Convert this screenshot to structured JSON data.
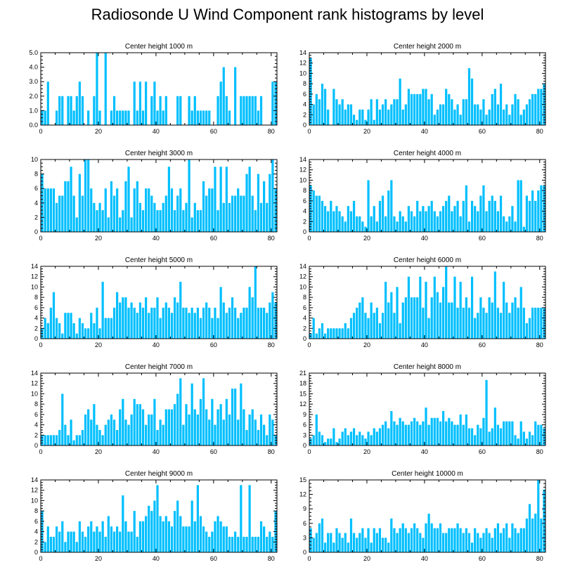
{
  "title": "Radiosonde U Wind Component rank histograms by level",
  "chart_data": [
    {
      "type": "bar",
      "title": "Center height 1000 m",
      "ylim": [
        0,
        5
      ],
      "yticks": [
        0,
        1,
        2,
        3,
        4,
        5
      ],
      "ytick_labels": [
        "0.0",
        "1.0",
        "2.0",
        "3.0",
        "4.0",
        "5.0"
      ],
      "xlim": [
        0,
        82
      ],
      "xticks": [
        0,
        20,
        40,
        60,
        80
      ],
      "xtick_labels": [
        "0",
        "20",
        "40",
        "60",
        "80"
      ],
      "values": [
        1,
        1,
        3,
        0,
        0,
        1,
        2,
        2,
        0,
        2,
        2,
        1,
        2,
        3,
        2,
        0,
        1,
        0,
        2,
        5,
        1,
        0,
        5,
        0,
        1,
        2,
        1,
        1,
        1,
        1,
        1,
        0,
        3,
        1,
        3,
        1,
        3,
        0,
        2,
        3,
        1,
        2,
        1,
        2,
        0,
        0,
        0,
        2,
        2,
        0,
        0,
        2,
        1,
        2,
        1,
        1,
        1,
        1,
        1,
        0,
        0,
        2,
        3,
        4,
        2,
        1,
        0,
        4,
        0,
        2,
        2,
        2,
        2,
        2,
        2,
        1,
        2,
        0,
        0,
        0,
        3,
        3
      ]
    },
    {
      "type": "bar",
      "title": "Center height 2000 m",
      "ylim": [
        0,
        14
      ],
      "yticks": [
        0,
        2,
        4,
        6,
        8,
        10,
        12,
        14
      ],
      "ytick_labels": [
        "0",
        "2",
        "4",
        "6",
        "8",
        "10",
        "12",
        "14"
      ],
      "xlim": [
        0,
        82
      ],
      "xticks": [
        0,
        20,
        40,
        60,
        80
      ],
      "xtick_labels": [
        "0",
        "20",
        "40",
        "60",
        "80"
      ],
      "values": [
        13,
        4,
        6,
        5,
        8,
        7,
        3,
        0,
        7,
        5,
        4,
        5,
        3,
        4,
        4,
        2,
        1,
        3,
        3,
        1,
        3,
        5,
        1,
        5,
        3,
        4,
        5,
        3,
        4,
        5,
        5,
        9,
        3,
        4,
        7,
        6,
        6,
        6,
        6,
        7,
        7,
        5,
        6,
        2,
        3,
        4,
        4,
        7,
        6,
        5,
        3,
        4,
        2,
        5,
        5,
        11,
        9,
        4,
        4,
        3,
        5,
        2,
        3,
        6,
        7,
        4,
        8,
        3,
        4,
        2,
        4,
        6,
        5,
        2,
        3,
        4,
        5,
        6,
        6,
        7,
        7,
        8
      ]
    },
    {
      "type": "bar",
      "title": "Center height 3000 m",
      "ylim": [
        0,
        10
      ],
      "yticks": [
        0,
        2,
        4,
        6,
        8,
        10
      ],
      "ytick_labels": [
        "0",
        "2",
        "4",
        "6",
        "8",
        "10"
      ],
      "xlim": [
        0,
        82
      ],
      "xticks": [
        0,
        20,
        40,
        60,
        80
      ],
      "xtick_labels": [
        "0",
        "20",
        "40",
        "60",
        "80"
      ],
      "values": [
        8,
        6,
        6,
        6,
        6,
        4,
        5,
        5,
        7,
        7,
        9,
        5,
        2,
        8,
        5,
        10,
        10,
        6,
        4,
        3,
        4,
        3,
        6,
        2,
        7,
        5,
        6,
        2,
        3,
        7,
        9,
        2,
        6,
        7,
        4,
        3,
        6,
        6,
        5,
        4,
        3,
        3,
        4,
        5,
        9,
        6,
        3,
        5,
        6,
        3,
        4,
        10,
        2,
        4,
        3,
        3,
        7,
        5,
        6,
        6,
        9,
        3,
        9,
        4,
        9,
        4,
        5,
        5,
        6,
        5,
        5,
        8,
        9,
        5,
        3,
        8,
        4,
        7,
        4,
        8,
        10,
        6
      ]
    },
    {
      "type": "bar",
      "title": "Center height 4000 m",
      "ylim": [
        0,
        14
      ],
      "yticks": [
        0,
        2,
        4,
        6,
        8,
        10,
        12,
        14
      ],
      "ytick_labels": [
        "0",
        "2",
        "4",
        "6",
        "8",
        "10",
        "12",
        "14"
      ],
      "xlim": [
        0,
        82
      ],
      "xticks": [
        0,
        20,
        40,
        60,
        80
      ],
      "xtick_labels": [
        "0",
        "20",
        "40",
        "60",
        "80"
      ],
      "values": [
        9,
        8,
        7,
        7,
        6,
        5,
        4,
        6,
        4,
        5,
        4,
        3,
        2,
        5,
        4,
        6,
        3,
        3,
        2,
        1,
        10,
        3,
        5,
        2,
        6,
        7,
        3,
        8,
        10,
        3,
        2,
        4,
        3,
        2,
        5,
        4,
        3,
        6,
        4,
        5,
        4,
        5,
        6,
        4,
        3,
        4,
        5,
        6,
        7,
        4,
        5,
        6,
        3,
        6,
        9,
        2,
        6,
        5,
        4,
        7,
        9,
        4,
        6,
        7,
        6,
        4,
        7,
        3,
        2,
        3,
        5,
        2,
        10,
        10,
        1,
        7,
        6,
        8,
        6,
        8,
        9,
        9
      ]
    },
    {
      "type": "bar",
      "title": "Center height 5000 m",
      "ylim": [
        0,
        14
      ],
      "yticks": [
        0,
        2,
        4,
        6,
        8,
        10,
        12,
        14
      ],
      "ytick_labels": [
        "0",
        "2",
        "4",
        "6",
        "8",
        "10",
        "12",
        "14"
      ],
      "xlim": [
        0,
        82
      ],
      "xticks": [
        0,
        20,
        40,
        60,
        80
      ],
      "xtick_labels": [
        "0",
        "20",
        "40",
        "60",
        "80"
      ],
      "values": [
        2,
        4,
        3,
        6,
        9,
        4,
        3,
        1,
        5,
        5,
        5,
        3,
        1,
        4,
        3,
        2,
        2,
        5,
        3,
        6,
        2,
        11,
        4,
        4,
        4,
        6,
        9,
        7,
        8,
        8,
        6,
        7,
        6,
        5,
        7,
        6,
        8,
        5,
        6,
        6,
        8,
        4,
        6,
        7,
        6,
        5,
        8,
        7,
        11,
        6,
        6,
        5,
        6,
        5,
        6,
        4,
        6,
        7,
        6,
        4,
        6,
        4,
        10,
        7,
        5,
        6,
        8,
        6,
        4,
        5,
        6,
        6,
        10,
        8,
        14,
        6,
        6,
        6,
        5,
        7,
        9,
        7
      ]
    },
    {
      "type": "bar",
      "title": "Center height 6000 m",
      "ylim": [
        0,
        14
      ],
      "yticks": [
        0,
        2,
        4,
        6,
        8,
        10,
        12,
        14
      ],
      "ytick_labels": [
        "0",
        "2",
        "4",
        "6",
        "8",
        "10",
        "12",
        "14"
      ],
      "xlim": [
        0,
        82
      ],
      "xticks": [
        0,
        20,
        40,
        60,
        80
      ],
      "xtick_labels": [
        "0",
        "20",
        "40",
        "60",
        "80"
      ],
      "values": [
        1,
        4,
        1,
        2,
        3,
        1,
        2,
        2,
        2,
        2,
        2,
        2,
        3,
        2,
        4,
        5,
        6,
        7,
        8,
        5,
        4,
        7,
        5,
        6,
        3,
        5,
        11,
        7,
        9,
        5,
        10,
        3,
        7,
        8,
        12,
        8,
        8,
        8,
        12,
        6,
        11,
        4,
        8,
        12,
        9,
        7,
        10,
        14,
        7,
        7,
        12,
        6,
        11,
        6,
        8,
        6,
        12,
        4,
        5,
        8,
        6,
        5,
        8,
        7,
        13,
        6,
        5,
        11,
        7,
        5,
        7,
        8,
        6,
        10,
        6,
        3,
        4,
        6,
        6,
        6,
        6,
        6
      ]
    },
    {
      "type": "bar",
      "title": "Center height 7000 m",
      "ylim": [
        0,
        14
      ],
      "yticks": [
        0,
        2,
        4,
        6,
        8,
        10,
        12,
        14
      ],
      "ytick_labels": [
        "0",
        "2",
        "4",
        "6",
        "8",
        "10",
        "12",
        "14"
      ],
      "xlim": [
        0,
        82
      ],
      "xticks": [
        0,
        20,
        40,
        60,
        80
      ],
      "xtick_labels": [
        "0",
        "20",
        "40",
        "60",
        "80"
      ],
      "values": [
        2,
        2,
        2,
        2,
        2,
        2,
        3,
        10,
        4,
        2,
        5,
        1,
        2,
        2,
        3,
        6,
        7,
        5,
        8,
        4,
        3,
        2,
        4,
        5,
        6,
        5,
        3,
        7,
        9,
        5,
        4,
        6,
        9,
        8,
        8,
        7,
        4,
        6,
        6,
        9,
        3,
        5,
        4,
        7,
        7,
        7,
        8,
        10,
        13,
        4,
        8,
        6,
        12,
        7,
        6,
        9,
        13,
        7,
        5,
        9,
        4,
        7,
        8,
        5,
        9,
        6,
        11,
        11,
        5,
        12,
        7,
        3,
        6,
        7,
        5,
        3,
        6,
        4,
        2,
        6,
        5,
        2
      ]
    },
    {
      "type": "bar",
      "title": "Center height 8000 m",
      "ylim": [
        0,
        21
      ],
      "yticks": [
        0,
        3,
        6,
        9,
        12,
        15,
        18,
        21
      ],
      "ytick_labels": [
        "0",
        "3",
        "6",
        "9",
        "12",
        "15",
        "18",
        "21"
      ],
      "xlim": [
        0,
        82
      ],
      "xticks": [
        0,
        20,
        40,
        60,
        80
      ],
      "xtick_labels": [
        "0",
        "20",
        "40",
        "60",
        "80"
      ],
      "values": [
        2,
        3,
        9,
        4,
        3,
        1,
        2,
        2,
        5,
        1,
        2,
        4,
        5,
        3,
        4,
        5,
        3,
        4,
        3,
        2,
        4,
        3,
        5,
        4,
        5,
        6,
        7,
        5,
        10,
        7,
        6,
        8,
        7,
        6,
        6,
        7,
        8,
        7,
        6,
        7,
        11,
        6,
        8,
        8,
        8,
        7,
        10,
        7,
        8,
        7,
        6,
        6,
        9,
        6,
        9,
        5,
        5,
        3,
        6,
        5,
        8,
        19,
        4,
        5,
        11,
        6,
        5,
        7,
        7,
        7,
        7,
        3,
        2,
        7,
        4,
        2,
        4,
        3,
        7,
        6,
        6,
        5
      ]
    },
    {
      "type": "bar",
      "title": "Center height 9000 m",
      "ylim": [
        0,
        14
      ],
      "yticks": [
        0,
        2,
        4,
        6,
        8,
        10,
        12,
        14
      ],
      "ytick_labels": [
        "0",
        "2",
        "4",
        "6",
        "8",
        "10",
        "12",
        "14"
      ],
      "xlim": [
        0,
        82
      ],
      "xticks": [
        0,
        20,
        40,
        60,
        80
      ],
      "xtick_labels": [
        "0",
        "20",
        "40",
        "60",
        "80"
      ],
      "values": [
        8,
        2,
        5,
        3,
        3,
        5,
        4,
        6,
        2,
        4,
        4,
        4,
        2,
        6,
        4,
        3,
        5,
        6,
        4,
        5,
        4,
        6,
        3,
        7,
        5,
        4,
        5,
        4,
        11,
        6,
        4,
        4,
        8,
        3,
        6,
        6,
        7,
        9,
        8,
        10,
        13,
        7,
        6,
        7,
        6,
        5,
        8,
        10,
        7,
        5,
        5,
        5,
        10,
        6,
        13,
        7,
        5,
        4,
        3,
        4,
        6,
        7,
        6,
        5,
        5,
        3,
        3,
        4,
        3,
        13,
        3,
        3,
        13,
        3,
        3,
        3,
        6,
        5,
        3,
        4,
        3,
        8
      ]
    },
    {
      "type": "bar",
      "title": "Center height 10000 m",
      "ylim": [
        0,
        15
      ],
      "yticks": [
        0,
        3,
        6,
        9,
        12,
        15
      ],
      "ytick_labels": [
        "0",
        "3",
        "6",
        "9",
        "12",
        "15"
      ],
      "xlim": [
        0,
        82
      ],
      "xticks": [
        0,
        20,
        40,
        60,
        80
      ],
      "xtick_labels": [
        "0",
        "20",
        "40",
        "60",
        "80"
      ],
      "values": [
        5,
        3,
        4,
        6,
        7,
        2,
        4,
        4,
        2,
        5,
        4,
        3,
        4,
        2,
        7,
        4,
        3,
        4,
        5,
        3,
        5,
        2,
        5,
        4,
        5,
        3,
        3,
        2,
        7,
        5,
        4,
        5,
        6,
        5,
        4,
        5,
        6,
        5,
        4,
        3,
        6,
        8,
        6,
        5,
        5,
        6,
        4,
        4,
        5,
        5,
        5,
        6,
        5,
        4,
        5,
        4,
        2,
        5,
        4,
        3,
        4,
        5,
        4,
        3,
        5,
        6,
        4,
        5,
        6,
        3,
        6,
        5,
        4,
        5,
        5,
        7,
        10,
        7,
        8,
        15,
        7,
        13
      ]
    }
  ]
}
